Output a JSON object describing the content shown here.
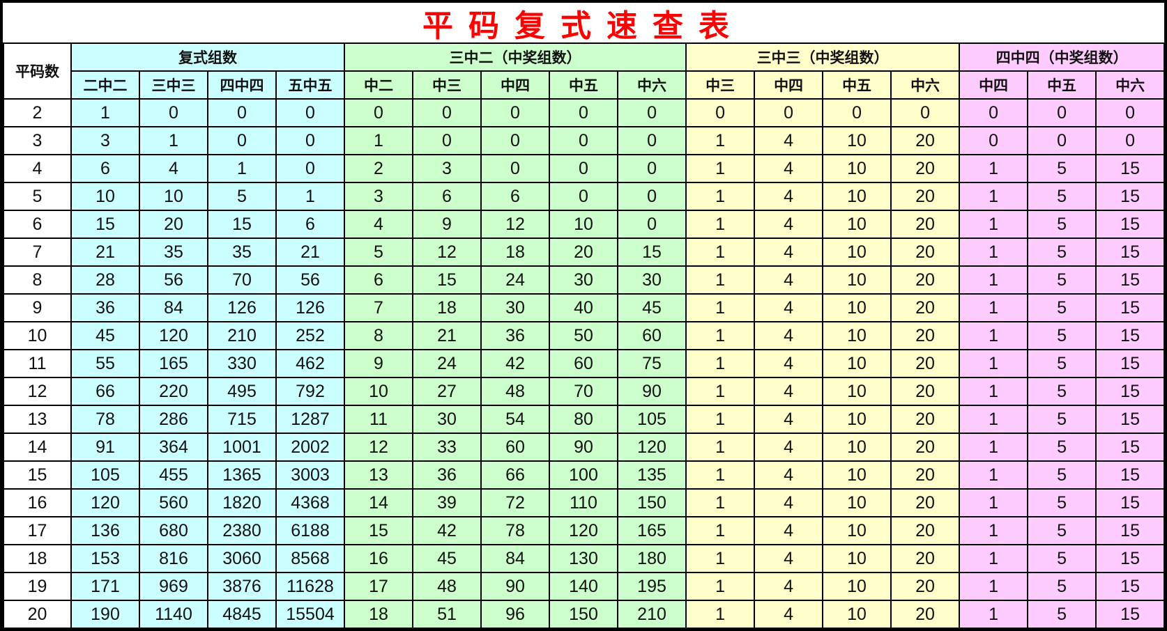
{
  "title": "平码复式速查表",
  "colors": {
    "title": "#ff0000",
    "group1": "#ccffff",
    "group2": "#ccffcc",
    "group3": "#ffffcc",
    "group4": "#ffccff"
  },
  "header": {
    "first_col": "平码数",
    "groups": [
      {
        "label": "复式组数",
        "cols": [
          "二中二",
          "三中三",
          "四中四",
          "五中五"
        ]
      },
      {
        "label": "三中二（中奖组数）",
        "cols": [
          "中二",
          "中三",
          "中四",
          "中五",
          "中六"
        ]
      },
      {
        "label": "三中三（中奖组数）",
        "cols": [
          "中三",
          "中四",
          "中五",
          "中六"
        ]
      },
      {
        "label": "四中四（中奖组数）",
        "cols": [
          "中四",
          "中五",
          "中六"
        ]
      }
    ]
  },
  "rows": [
    [
      "2",
      "1",
      "0",
      "0",
      "0",
      "0",
      "0",
      "0",
      "0",
      "0",
      "0",
      "0",
      "0",
      "0",
      "0",
      "0",
      "0"
    ],
    [
      "3",
      "3",
      "1",
      "0",
      "0",
      "1",
      "0",
      "0",
      "0",
      "0",
      "1",
      "4",
      "10",
      "20",
      "0",
      "0",
      "0"
    ],
    [
      "4",
      "6",
      "4",
      "1",
      "0",
      "2",
      "3",
      "0",
      "0",
      "0",
      "1",
      "4",
      "10",
      "20",
      "1",
      "5",
      "15"
    ],
    [
      "5",
      "10",
      "10",
      "5",
      "1",
      "3",
      "6",
      "6",
      "0",
      "0",
      "1",
      "4",
      "10",
      "20",
      "1",
      "5",
      "15"
    ],
    [
      "6",
      "15",
      "20",
      "15",
      "6",
      "4",
      "9",
      "12",
      "10",
      "0",
      "1",
      "4",
      "10",
      "20",
      "1",
      "5",
      "15"
    ],
    [
      "7",
      "21",
      "35",
      "35",
      "21",
      "5",
      "12",
      "18",
      "20",
      "15",
      "1",
      "4",
      "10",
      "20",
      "1",
      "5",
      "15"
    ],
    [
      "8",
      "28",
      "56",
      "70",
      "56",
      "6",
      "15",
      "24",
      "30",
      "30",
      "1",
      "4",
      "10",
      "20",
      "1",
      "5",
      "15"
    ],
    [
      "9",
      "36",
      "84",
      "126",
      "126",
      "7",
      "18",
      "30",
      "40",
      "45",
      "1",
      "4",
      "10",
      "20",
      "1",
      "5",
      "15"
    ],
    [
      "10",
      "45",
      "120",
      "210",
      "252",
      "8",
      "21",
      "36",
      "50",
      "60",
      "1",
      "4",
      "10",
      "20",
      "1",
      "5",
      "15"
    ],
    [
      "11",
      "55",
      "165",
      "330",
      "462",
      "9",
      "24",
      "42",
      "60",
      "75",
      "1",
      "4",
      "10",
      "20",
      "1",
      "5",
      "15"
    ],
    [
      "12",
      "66",
      "220",
      "495",
      "792",
      "10",
      "27",
      "48",
      "70",
      "90",
      "1",
      "4",
      "10",
      "20",
      "1",
      "5",
      "15"
    ],
    [
      "13",
      "78",
      "286",
      "715",
      "1287",
      "11",
      "30",
      "54",
      "80",
      "105",
      "1",
      "4",
      "10",
      "20",
      "1",
      "5",
      "15"
    ],
    [
      "14",
      "91",
      "364",
      "1001",
      "2002",
      "12",
      "33",
      "60",
      "90",
      "120",
      "1",
      "4",
      "10",
      "20",
      "1",
      "5",
      "15"
    ],
    [
      "15",
      "105",
      "455",
      "1365",
      "3003",
      "13",
      "36",
      "66",
      "100",
      "135",
      "1",
      "4",
      "10",
      "20",
      "1",
      "5",
      "15"
    ],
    [
      "16",
      "120",
      "560",
      "1820",
      "4368",
      "14",
      "39",
      "72",
      "110",
      "150",
      "1",
      "4",
      "10",
      "20",
      "1",
      "5",
      "15"
    ],
    [
      "17",
      "136",
      "680",
      "2380",
      "6188",
      "15",
      "42",
      "78",
      "120",
      "165",
      "1",
      "4",
      "10",
      "20",
      "1",
      "5",
      "15"
    ],
    [
      "18",
      "153",
      "816",
      "3060",
      "8568",
      "16",
      "45",
      "84",
      "130",
      "180",
      "1",
      "4",
      "10",
      "20",
      "1",
      "5",
      "15"
    ],
    [
      "19",
      "171",
      "969",
      "3876",
      "11628",
      "17",
      "48",
      "90",
      "140",
      "195",
      "1",
      "4",
      "10",
      "20",
      "1",
      "5",
      "15"
    ],
    [
      "20",
      "190",
      "1140",
      "4845",
      "15504",
      "18",
      "51",
      "96",
      "150",
      "210",
      "1",
      "4",
      "10",
      "20",
      "1",
      "5",
      "15"
    ]
  ]
}
